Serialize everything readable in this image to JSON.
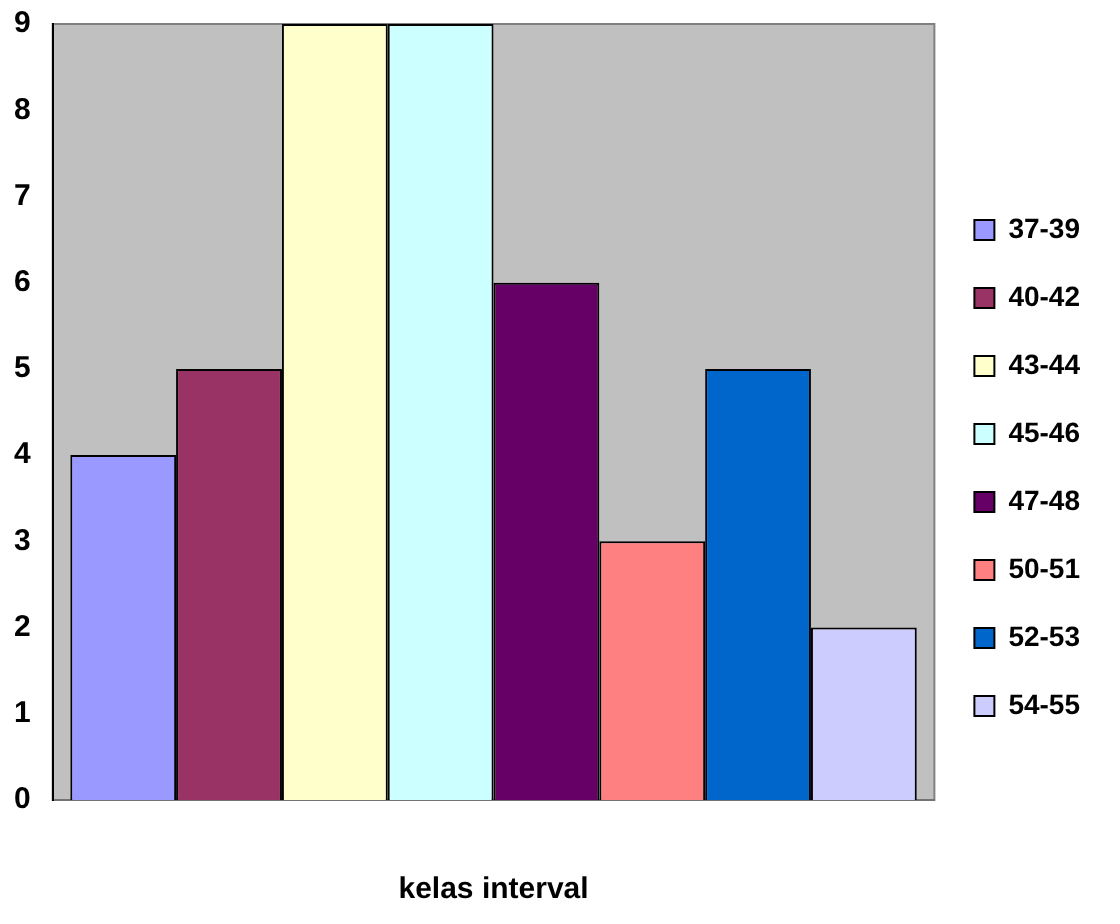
{
  "chart_data": {
    "type": "bar",
    "xlabel": "kelas interval",
    "categories": [
      null
    ],
    "series": [
      {
        "name": "37-39",
        "color": "#9999ff",
        "values": [
          4
        ]
      },
      {
        "name": "40-42",
        "color": "#993366",
        "values": [
          5
        ]
      },
      {
        "name": "43-44",
        "color": "#ffffcc",
        "values": [
          9
        ]
      },
      {
        "name": "45-46",
        "color": "#ccffff",
        "values": [
          9
        ]
      },
      {
        "name": "47-48",
        "color": "#660066",
        "values": [
          6
        ]
      },
      {
        "name": "50-51",
        "color": "#ff8080",
        "values": [
          3
        ]
      },
      {
        "name": "52-53",
        "color": "#0066cc",
        "values": [
          5
        ]
      },
      {
        "name": "54-55",
        "color": "#ccccff",
        "values": [
          2
        ]
      }
    ],
    "ylim": [
      0,
      9
    ],
    "yticks": [
      0,
      1,
      2,
      3,
      4,
      5,
      6,
      7,
      8,
      9
    ],
    "grid": false,
    "legend": "right"
  }
}
